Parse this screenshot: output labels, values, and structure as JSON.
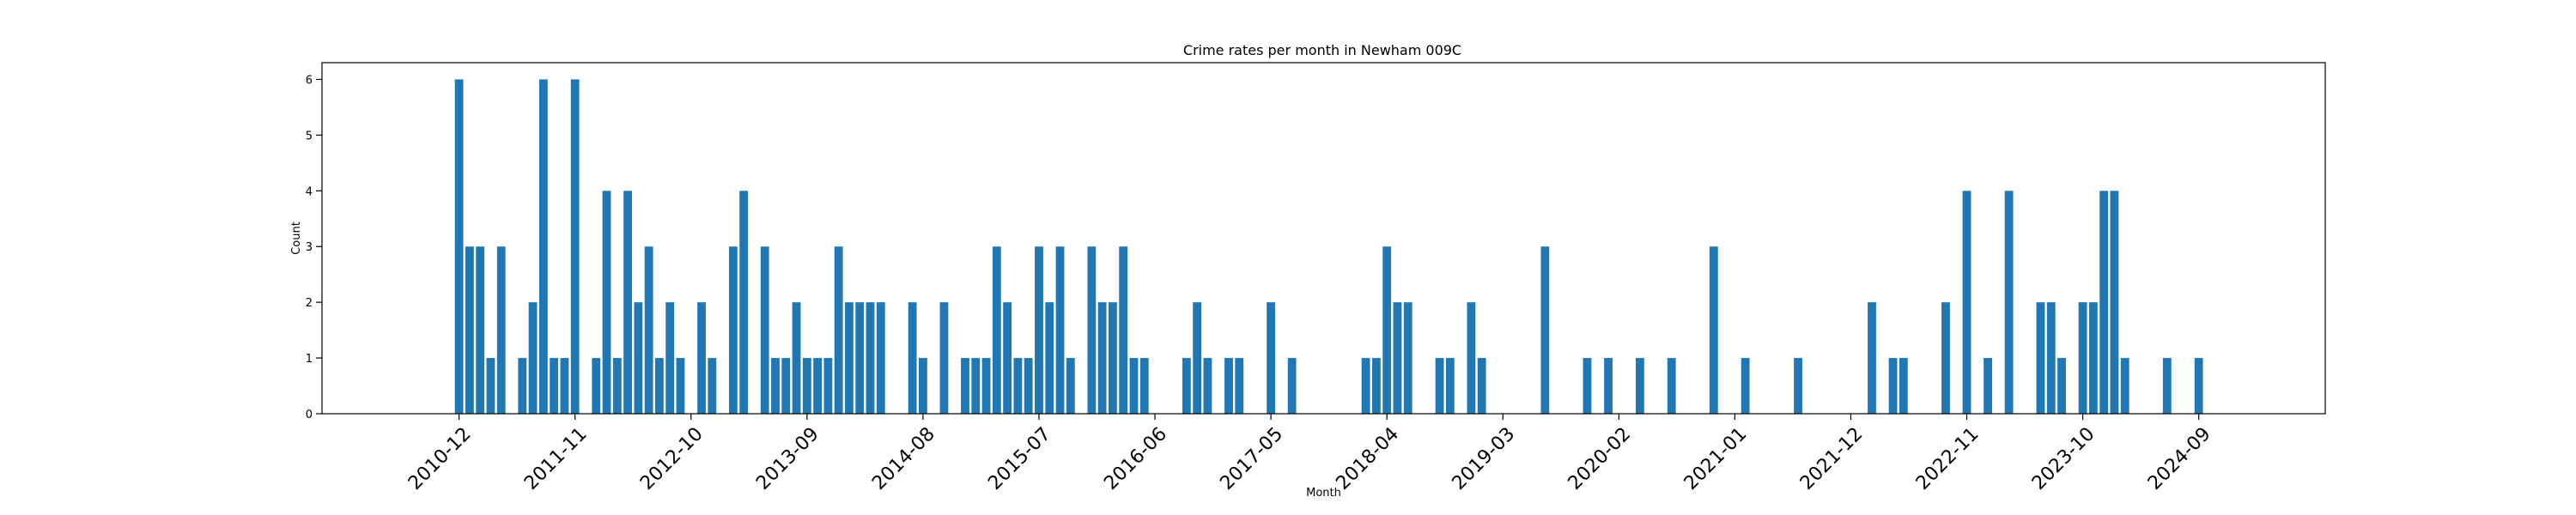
{
  "chart_data": {
    "type": "bar",
    "title": "Crime rates per month in Newham 009C",
    "xlabel": "Month",
    "ylabel": "Count",
    "ylim": [
      0,
      6.3
    ],
    "yticks": [
      0,
      1,
      2,
      3,
      4,
      5,
      6
    ],
    "xlim": [
      "2009-11",
      "2025-09"
    ],
    "xticks": [
      "2010-12",
      "2011-11",
      "2012-10",
      "2013-09",
      "2014-08",
      "2015-07",
      "2016-06",
      "2017-05",
      "2018-04",
      "2019-03",
      "2020-02",
      "2021-01",
      "2021-12",
      "2022-11",
      "2023-10",
      "2024-09"
    ],
    "bar_color": "#1f77b4",
    "grid": false,
    "legend": "none",
    "categories": [
      "2010-12",
      "2011-01",
      "2011-02",
      "2011-03",
      "2011-04",
      "2011-06",
      "2011-07",
      "2011-08",
      "2011-09",
      "2011-10",
      "2011-11",
      "2012-01",
      "2012-02",
      "2012-03",
      "2012-04",
      "2012-05",
      "2012-06",
      "2012-07",
      "2012-08",
      "2012-09",
      "2012-11",
      "2012-12",
      "2013-02",
      "2013-03",
      "2013-05",
      "2013-06",
      "2013-07",
      "2013-08",
      "2013-09",
      "2013-10",
      "2013-11",
      "2013-12",
      "2014-01",
      "2014-02",
      "2014-03",
      "2014-04",
      "2014-07",
      "2014-08",
      "2014-10",
      "2014-12",
      "2015-01",
      "2015-02",
      "2015-03",
      "2015-04",
      "2015-05",
      "2015-06",
      "2015-07",
      "2015-08",
      "2015-09",
      "2015-10",
      "2015-12",
      "2016-01",
      "2016-02",
      "2016-03",
      "2016-04",
      "2016-05",
      "2016-09",
      "2016-10",
      "2016-11",
      "2017-01",
      "2017-02",
      "2017-05",
      "2017-07",
      "2018-02",
      "2018-03",
      "2018-04",
      "2018-05",
      "2018-06",
      "2018-09",
      "2018-10",
      "2018-12",
      "2019-01",
      "2019-07",
      "2019-11",
      "2020-01",
      "2020-04",
      "2020-07",
      "2020-11",
      "2021-02",
      "2021-07",
      "2022-02",
      "2022-04",
      "2022-05",
      "2022-09",
      "2022-11",
      "2023-01",
      "2023-03",
      "2023-06",
      "2023-07",
      "2023-08",
      "2023-10",
      "2023-11",
      "2023-12",
      "2024-01",
      "2024-02",
      "2024-06",
      "2024-09"
    ],
    "values": [
      6,
      3,
      3,
      1,
      3,
      1,
      2,
      6,
      1,
      1,
      6,
      1,
      4,
      1,
      4,
      2,
      3,
      1,
      2,
      1,
      2,
      1,
      3,
      4,
      3,
      1,
      1,
      2,
      1,
      1,
      1,
      3,
      2,
      2,
      2,
      2,
      2,
      1,
      2,
      1,
      1,
      1,
      3,
      2,
      1,
      1,
      3,
      2,
      3,
      1,
      3,
      2,
      2,
      3,
      1,
      1,
      1,
      2,
      1,
      1,
      1,
      2,
      1,
      1,
      1,
      3,
      2,
      2,
      1,
      1,
      2,
      1,
      3,
      1,
      1,
      1,
      1,
      3,
      1,
      1,
      2,
      1,
      1,
      2,
      4,
      1,
      4,
      2,
      2,
      1,
      2,
      2,
      4,
      4,
      1,
      1,
      1
    ]
  }
}
